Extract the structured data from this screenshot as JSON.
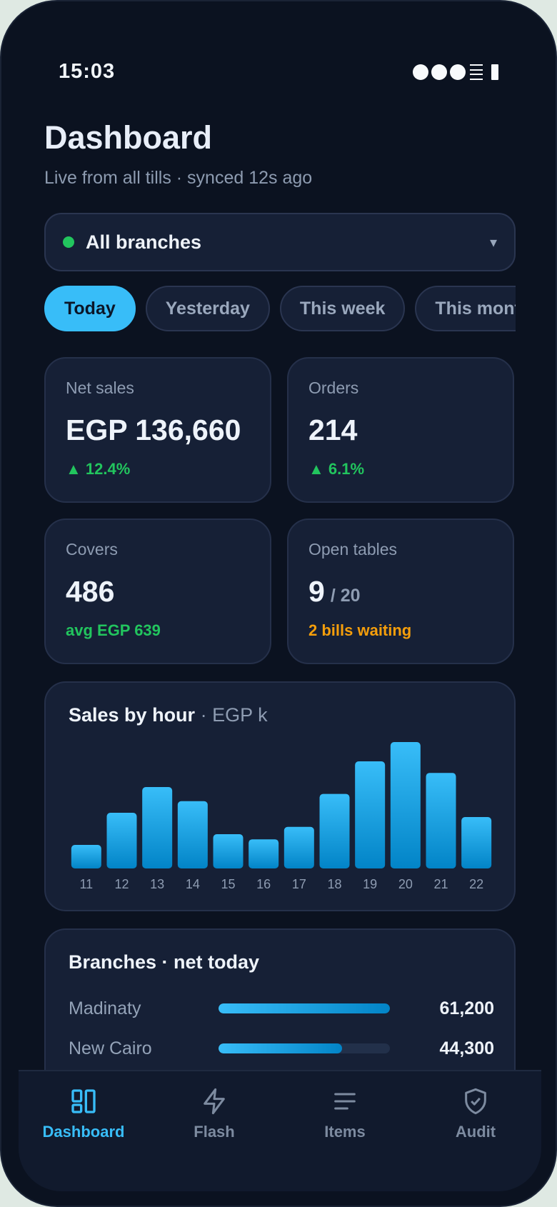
{
  "status_bar": {
    "time": "15:03"
  },
  "header": {
    "title": "Dashboard",
    "subtitle": "Live from all tills · synced 12s ago"
  },
  "branch_selector": {
    "label": "All branches",
    "chevron": "▾",
    "status_color": "#22c55e"
  },
  "filters": {
    "chips": [
      "Today",
      "Yesterday",
      "This week",
      "This month"
    ],
    "active": "Today"
  },
  "kpis": {
    "net_sales": {
      "label": "Net sales",
      "value": "EGP 136,660",
      "change": "▲ 12.4%"
    },
    "orders": {
      "label": "Orders",
      "value": "214",
      "change": "▲ 6.1%"
    },
    "covers": {
      "label": "Covers",
      "value": "486",
      "note": "avg EGP 639"
    },
    "open_tables": {
      "label": "Open tables",
      "value": "9",
      "total": "/ 20",
      "note": "2 bills waiting"
    }
  },
  "chart": {
    "title": "Sales by hour",
    "unit": "· EGP k"
  },
  "chart_data": {
    "type": "bar",
    "title": "Sales by hour · EGP k",
    "categories": [
      "11",
      "12",
      "13",
      "14",
      "15",
      "16",
      "17",
      "18",
      "19",
      "20",
      "21",
      "22"
    ],
    "values": [
      5.5,
      13,
      19,
      15.7,
      8,
      6.8,
      9.7,
      17.4,
      25,
      29.5,
      22.3,
      12
    ],
    "ylim": [
      0,
      30
    ],
    "color": "#38bdf8",
    "grid": false,
    "legend": "none"
  },
  "branches": {
    "title": "Branches · net today",
    "rows": [
      {
        "name": "Madinaty",
        "value": "61,200",
        "fraction": 1.0
      },
      {
        "name": "New Cairo",
        "value": "44,300",
        "fraction": 0.72
      }
    ]
  },
  "tabbar": {
    "tabs": [
      {
        "label": "Dashboard",
        "icon": "dashboard-icon"
      },
      {
        "label": "Flash",
        "icon": "flash-icon"
      },
      {
        "label": "Items",
        "icon": "items-icon"
      },
      {
        "label": "Audit",
        "icon": "audit-shield-icon"
      }
    ],
    "active": "Dashboard"
  },
  "colors": {
    "accent": "#38bdf8",
    "positive": "#22c55e",
    "warning": "#f59e0b",
    "background": "#0b1220",
    "card": "#162036"
  }
}
